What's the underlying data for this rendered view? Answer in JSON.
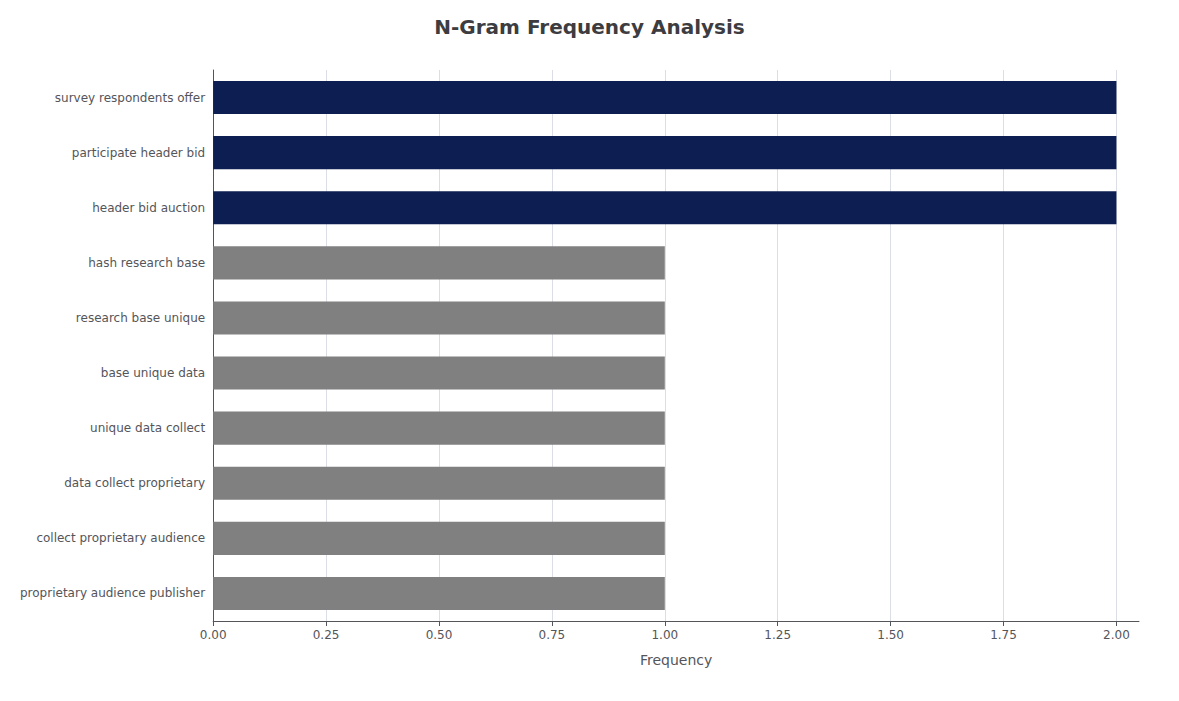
{
  "chart_data": {
    "type": "bar",
    "orientation": "horizontal",
    "title": "N-Gram Frequency Analysis",
    "xlabel": "Frequency",
    "categories": [
      "proprietary audience publisher",
      "collect proprietary audience",
      "data collect proprietary",
      "unique data collect",
      "base unique data",
      "research base unique",
      "hash research base",
      "header bid auction",
      "participate header bid",
      "survey respondents offer"
    ],
    "values": [
      1,
      1,
      1,
      1,
      1,
      1,
      1,
      2,
      2,
      2
    ],
    "colors": [
      "#808080",
      "#808080",
      "#808080",
      "#808080",
      "#808080",
      "#808080",
      "#808080",
      "#0d1f52",
      "#0d1f52",
      "#0d1f52"
    ],
    "xlim": [
      0,
      2.05
    ],
    "xticks": [
      {
        "value": 0,
        "label": "0.00"
      },
      {
        "value": 0.25,
        "label": "0.25"
      },
      {
        "value": 0.5,
        "label": "0.50"
      },
      {
        "value": 0.75,
        "label": "0.75"
      },
      {
        "value": 1,
        "label": "1.00"
      },
      {
        "value": 1.25,
        "label": "1.25"
      },
      {
        "value": 1.5,
        "label": "1.50"
      },
      {
        "value": 1.75,
        "label": "1.75"
      },
      {
        "value": 2,
        "label": "2.00"
      }
    ],
    "grid": true
  }
}
